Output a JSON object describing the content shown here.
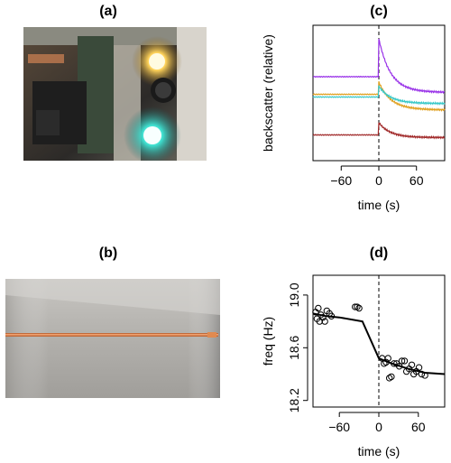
{
  "panels": {
    "a": {
      "label": "(a)",
      "description_icon": "photo-circuit-leds"
    },
    "b": {
      "label": "(b)",
      "description_icon": "photo-copper-strip-on-metal"
    },
    "c": {
      "label": "(c)"
    },
    "d": {
      "label": "(d)"
    }
  },
  "chart_data": [
    {
      "panel": "c",
      "type": "line",
      "xlabel": "time (s)",
      "ylabel": "backscatter (relative)",
      "xlim": [
        -105,
        105
      ],
      "ylim": [
        0,
        1
      ],
      "xticks": [
        -60,
        0,
        60
      ],
      "yticks": [],
      "event_line_x": 0,
      "series": [
        {
          "color": "#9932e8",
          "baseline": 0.62,
          "peak": 0.9,
          "tail": 0.5
        },
        {
          "color": "#e0a020",
          "baseline": 0.49,
          "peak": 0.58,
          "tail": 0.37
        },
        {
          "color": "#38c8c8",
          "baseline": 0.47,
          "peak": 0.55,
          "tail": 0.42
        },
        {
          "color": "#a02828",
          "baseline": 0.19,
          "peak": 0.28,
          "tail": 0.17
        }
      ]
    },
    {
      "panel": "d",
      "type": "scatter",
      "xlabel": "time (s)",
      "ylabel": "freq (Hz)",
      "xlim": [
        -100,
        100
      ],
      "ylim": [
        18.15,
        19.15
      ],
      "xticks": [
        -60,
        0,
        60
      ],
      "yticks": [
        18.2,
        18.6,
        19.0
      ],
      "event_line_x": 0,
      "points": [
        [
          -96,
          18.87
        ],
        [
          -94,
          18.82
        ],
        [
          -92,
          18.9
        ],
        [
          -90,
          18.8
        ],
        [
          -88,
          18.85
        ],
        [
          -85,
          18.83
        ],
        [
          -82,
          18.8
        ],
        [
          -79,
          18.88
        ],
        [
          -75,
          18.86
        ],
        [
          -72,
          18.84
        ],
        [
          -36,
          18.91
        ],
        [
          -33,
          18.91
        ],
        [
          -30,
          18.9
        ],
        [
          5,
          18.52
        ],
        [
          8,
          18.48
        ],
        [
          11,
          18.49
        ],
        [
          14,
          18.52
        ],
        [
          16,
          18.37
        ],
        [
          19,
          18.38
        ],
        [
          23,
          18.48
        ],
        [
          27,
          18.48
        ],
        [
          31,
          18.46
        ],
        [
          35,
          18.5
        ],
        [
          39,
          18.5
        ],
        [
          42,
          18.42
        ],
        [
          46,
          18.44
        ],
        [
          50,
          18.47
        ],
        [
          53,
          18.4
        ],
        [
          57,
          18.42
        ],
        [
          61,
          18.45
        ],
        [
          65,
          18.4
        ],
        [
          70,
          18.39
        ]
      ],
      "fit_line": [
        [
          -100,
          18.86
        ],
        [
          -80,
          18.84
        ],
        [
          -60,
          18.83
        ],
        [
          -25,
          18.8
        ],
        [
          0,
          18.52
        ],
        [
          20,
          18.48
        ],
        [
          45,
          18.44
        ],
        [
          70,
          18.41
        ],
        [
          100,
          18.4
        ]
      ]
    }
  ]
}
